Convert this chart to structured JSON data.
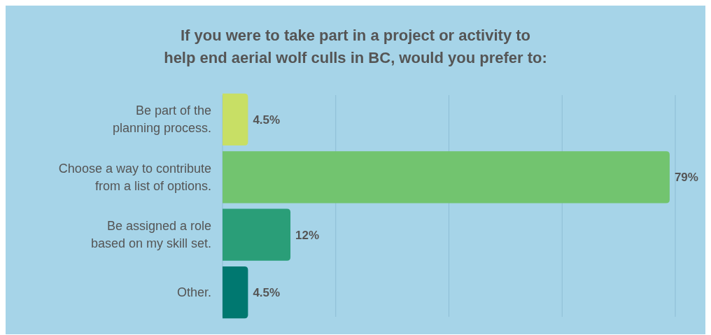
{
  "chart_data": {
    "type": "bar",
    "orientation": "horizontal",
    "title": "If you were to take part in a project or activity to help end aerial wolf culls in BC, would you prefer to:",
    "categories": [
      "Be part of the planning process.",
      "Choose a way to contribute from a list of options.",
      "Be assigned a role based on my skill set.",
      "Other."
    ],
    "values": [
      4.5,
      79,
      12,
      4.5
    ],
    "colors": [
      "#c8df65",
      "#72c46f",
      "#2a9e78",
      "#007870"
    ],
    "value_labels": [
      "4.5%",
      "79%",
      "12%",
      "4.5%"
    ],
    "xlim": [
      0,
      80
    ],
    "xticks": [
      {
        "value": 0,
        "label": null
      },
      {
        "value": 20,
        "label": null
      },
      {
        "value": 40,
        "label": null
      },
      {
        "value": 60,
        "label": null
      },
      {
        "value": 80,
        "label": null
      }
    ],
    "grid": "x",
    "tick_labels": "y"
  }
}
